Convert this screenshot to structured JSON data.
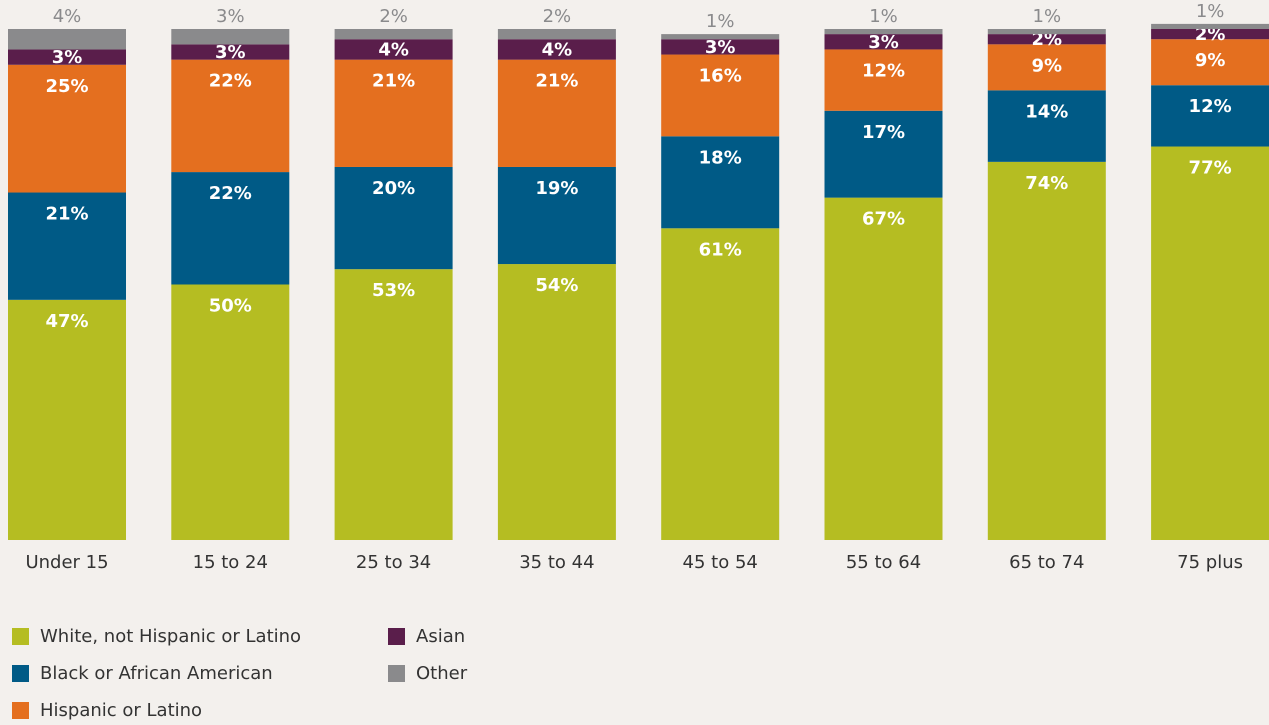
{
  "chart_data": {
    "type": "stacked_bar",
    "categories": [
      "Under 15",
      "15 to 24",
      "25 to 34",
      "35 to 44",
      "45 to 54",
      "55 to 64",
      "65 to 74",
      "75 plus"
    ],
    "series": [
      {
        "name": "White, not Hispanic or Latino",
        "color": "#b5bd22",
        "values": [
          47,
          50,
          53,
          54,
          61,
          67,
          74,
          77
        ],
        "value_labels": [
          "47%",
          "50%",
          "53%",
          "54%",
          "61%",
          "67%",
          "74%",
          "77%"
        ]
      },
      {
        "name": "Black or African American",
        "color": "#005a86",
        "values": [
          21,
          22,
          20,
          19,
          18,
          17,
          14,
          12
        ],
        "value_labels": [
          "21%",
          "22%",
          "20%",
          "19%",
          "18%",
          "17%",
          "14%",
          "12%"
        ]
      },
      {
        "name": "Hispanic or Latino",
        "color": "#e46f1f",
        "values": [
          25,
          22,
          21,
          21,
          16,
          12,
          9,
          9
        ],
        "value_labels": [
          "25%",
          "22%",
          "21%",
          "21%",
          "16%",
          "12%",
          "9%",
          "9%"
        ]
      },
      {
        "name": "Asian",
        "color": "#5a1e4b",
        "values": [
          3,
          3,
          4,
          4,
          3,
          3,
          2,
          2
        ],
        "value_labels": [
          "3%",
          "3%",
          "4%",
          "4%",
          "3%",
          "3%",
          "2%",
          "2%"
        ]
      },
      {
        "name": "Other",
        "color": "#8a8a8c",
        "values": [
          4,
          3,
          2,
          2,
          1,
          1,
          1,
          1
        ],
        "value_labels": [
          "4%",
          "3%",
          "2%",
          "2%",
          "1%",
          "1%",
          "1%",
          "1%"
        ]
      }
    ]
  }
}
